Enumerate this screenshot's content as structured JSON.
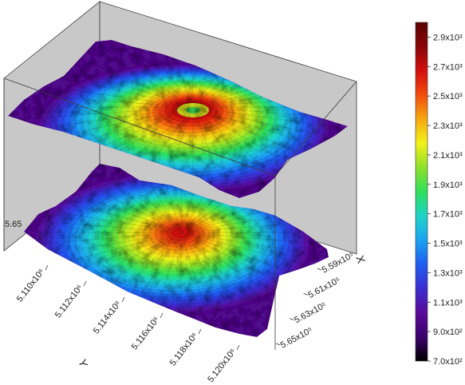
{
  "chart_data": {
    "type": "3d-surface",
    "subtype": "two stacked terrain surfaces (volcano) colored by elevation",
    "x_axis": {
      "label": "X",
      "ticks": [
        "5.59x10⁵",
        "5.61x10⁵",
        "5.63x10⁵",
        "5.65x10⁵"
      ],
      "values": [
        559000,
        561000,
        563000,
        565000
      ]
    },
    "y_axis": {
      "label": "Y",
      "ticks": [
        "5.110x10⁶",
        "5.112x10⁶",
        "5.114x10⁶",
        "5.116x10⁶",
        "5.118x10⁶",
        "5.120x10⁶"
      ],
      "values": [
        5110000,
        5112000,
        5114000,
        5116000,
        5118000,
        5120000
      ]
    },
    "partial_tick": "5.65",
    "colorbar": {
      "min": 700,
      "max": 3000,
      "ticks": [
        "7.0x10²",
        "9.0x10²",
        "1.1x10³",
        "1.3x10³",
        "1.5x10³",
        "1.7x10³",
        "1.9x10³",
        "2.1x10³",
        "2.3x10³",
        "2.5x10³",
        "2.7x10³",
        "2.9x10³"
      ],
      "tick_values": [
        700,
        900,
        1100,
        1300,
        1500,
        1700,
        1900,
        2100,
        2300,
        2500,
        2700,
        2900
      ],
      "colormap": [
        "#000000",
        "#3b006a",
        "#5a0a9a",
        "#3a2dd0",
        "#1f5cf0",
        "#1aa3f0",
        "#1ed3c8",
        "#2ee05a",
        "#8ee02a",
        "#f2f21a",
        "#f6a80e",
        "#f24c0c",
        "#d40e0e",
        "#8a0606",
        "#5a0202"
      ]
    },
    "surfaces": [
      {
        "name": "upper",
        "peak_elevation": 2950,
        "shape": "volcanic cone with crater"
      },
      {
        "name": "lower",
        "peak_elevation": 2750,
        "shape": "volcanic cone"
      }
    ],
    "box": {
      "fill": "#c8c8c8",
      "edge": "#3a3a3a"
    }
  }
}
